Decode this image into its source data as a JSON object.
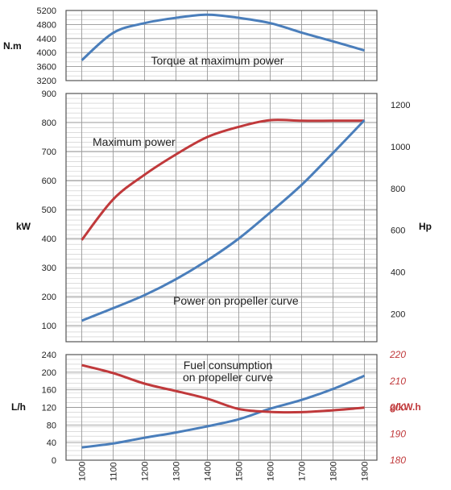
{
  "chart_data": [
    {
      "type": "line",
      "id": "torque",
      "x": [
        1000,
        1100,
        1200,
        1300,
        1400,
        1500,
        1600,
        1700,
        1800,
        1900
      ],
      "ylabel": "N.m",
      "ylim": [
        3200,
        5200
      ],
      "yticks": [
        "5200",
        "4800",
        "4400",
        "4000",
        "3600",
        "3200"
      ],
      "yticks_right": [
        "5000",
        "4600",
        "4200",
        "3800",
        "3400"
      ],
      "series": [
        {
          "color": "#4a7ebb",
          "values": [
            3780,
            4560,
            4840,
            4990,
            5080,
            4990,
            4840,
            4570,
            4320,
            4060
          ]
        }
      ],
      "annotations": [
        "Torque at maximum power"
      ],
      "grid": true
    },
    {
      "type": "line",
      "id": "power",
      "x": [
        1000,
        1100,
        1200,
        1300,
        1400,
        1500,
        1600,
        1700,
        1800,
        1900
      ],
      "ylabel": "kW",
      "ylabel_right": "Hp",
      "ylim": [
        50,
        900
      ],
      "yticks": [
        "900",
        "800",
        "700",
        "600",
        "500",
        "400",
        "300",
        "200",
        "100"
      ],
      "ylim_right": [
        68,
        1224
      ],
      "yticks_right": [
        "1200",
        "1000",
        "800",
        "600",
        "400",
        "200"
      ],
      "series": [
        {
          "color": "#c0393b",
          "values": [
            395,
            535,
            620,
            690,
            750,
            785,
            808,
            806,
            806,
            806
          ]
        },
        {
          "color": "#4a7ebb",
          "values": [
            117,
            160,
            205,
            260,
            325,
            400,
            490,
            585,
            695,
            808
          ]
        }
      ],
      "annotations": [
        "Maximum power",
        "Power on propeller curve"
      ],
      "grid": true
    },
    {
      "type": "line",
      "id": "fuel",
      "x": [
        1000,
        1100,
        1200,
        1300,
        1400,
        1500,
        1600,
        1700,
        1800,
        1900
      ],
      "xticks": [
        "1000",
        "1100",
        "1200",
        "1300",
        "1400",
        "1500",
        "1600",
        "1700",
        "1800",
        "1900"
      ],
      "ylabel": "L/h",
      "ylabel_right": "g/kW.h",
      "ylim": [
        0,
        240
      ],
      "yticks": [
        "240",
        "200",
        "160",
        "120",
        "80",
        "40",
        "0"
      ],
      "yticks_minor": [
        "220",
        "180",
        "140",
        "100",
        "60",
        "20"
      ],
      "ylim_right": [
        180,
        220
      ],
      "yticks_right": [
        "220",
        "210",
        "200",
        "190",
        "180"
      ],
      "series": [
        {
          "color": "#4a7ebb",
          "axis": "left",
          "values": [
            29,
            38,
            51,
            63,
            77,
            93,
            117,
            137,
            162,
            192
          ]
        },
        {
          "color": "#c0393b",
          "axis": "right",
          "values": [
            216,
            213,
            209,
            206.2,
            203.3,
            199.4,
            198.3,
            198.2,
            198.9,
            199.9
          ]
        }
      ],
      "annotations": [
        "Fuel consumption",
        "on propeller curve"
      ],
      "grid": true
    }
  ]
}
